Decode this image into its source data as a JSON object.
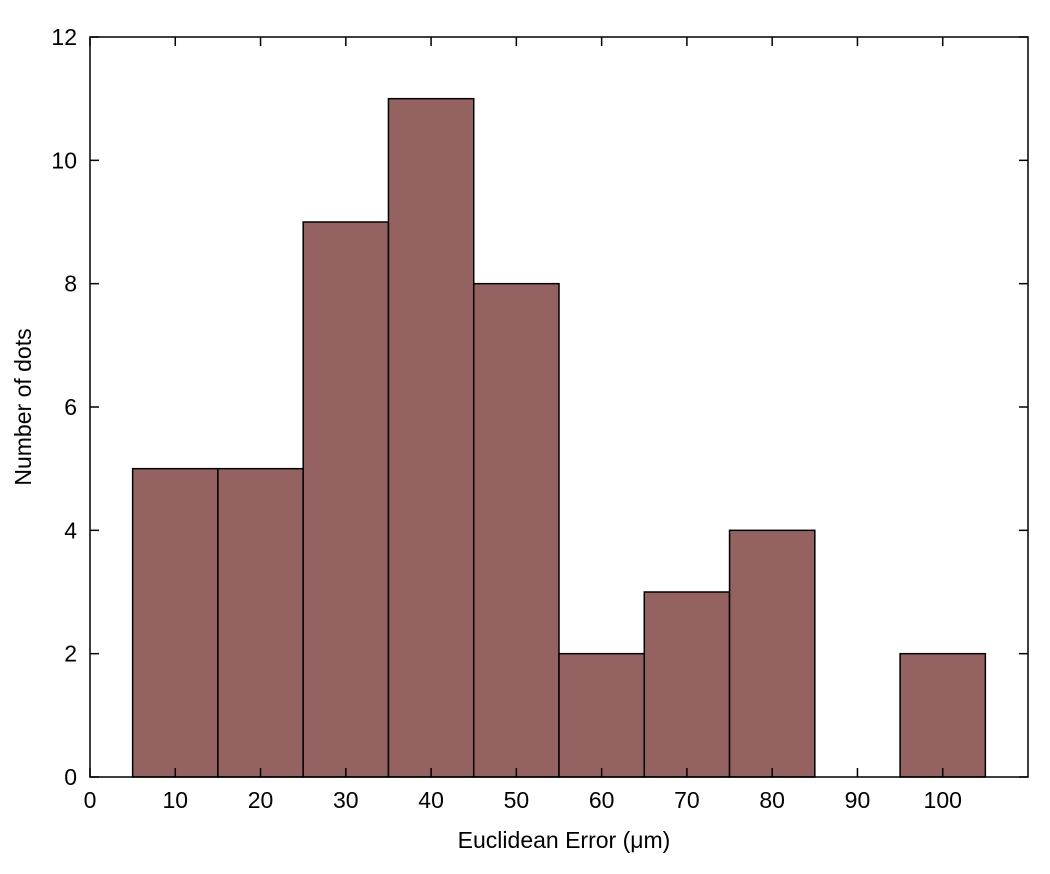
{
  "chart_data": {
    "type": "bar",
    "title": "",
    "xlabel": "Euclidean Error (μm)",
    "ylabel": "Number of dots",
    "categories": [
      "10",
      "20",
      "30",
      "40",
      "50",
      "60",
      "70",
      "80",
      "90",
      "100"
    ],
    "bin_centers": [
      10,
      20,
      30,
      40,
      50,
      60,
      70,
      80,
      90,
      100
    ],
    "bin_width": 10,
    "values": [
      5,
      5,
      9,
      11,
      8,
      2,
      3,
      4,
      0,
      2
    ],
    "xlim": [
      0,
      110
    ],
    "ylim": [
      0,
      12
    ],
    "xticks": [
      "0",
      "10",
      "20",
      "30",
      "40",
      "50",
      "60",
      "70",
      "80",
      "90",
      "100"
    ],
    "yticks": [
      "0",
      "2",
      "4",
      "6",
      "8",
      "10",
      "12"
    ],
    "grid": false,
    "legend": "none",
    "bar_color": "#956262",
    "edge_color": "#000000"
  }
}
